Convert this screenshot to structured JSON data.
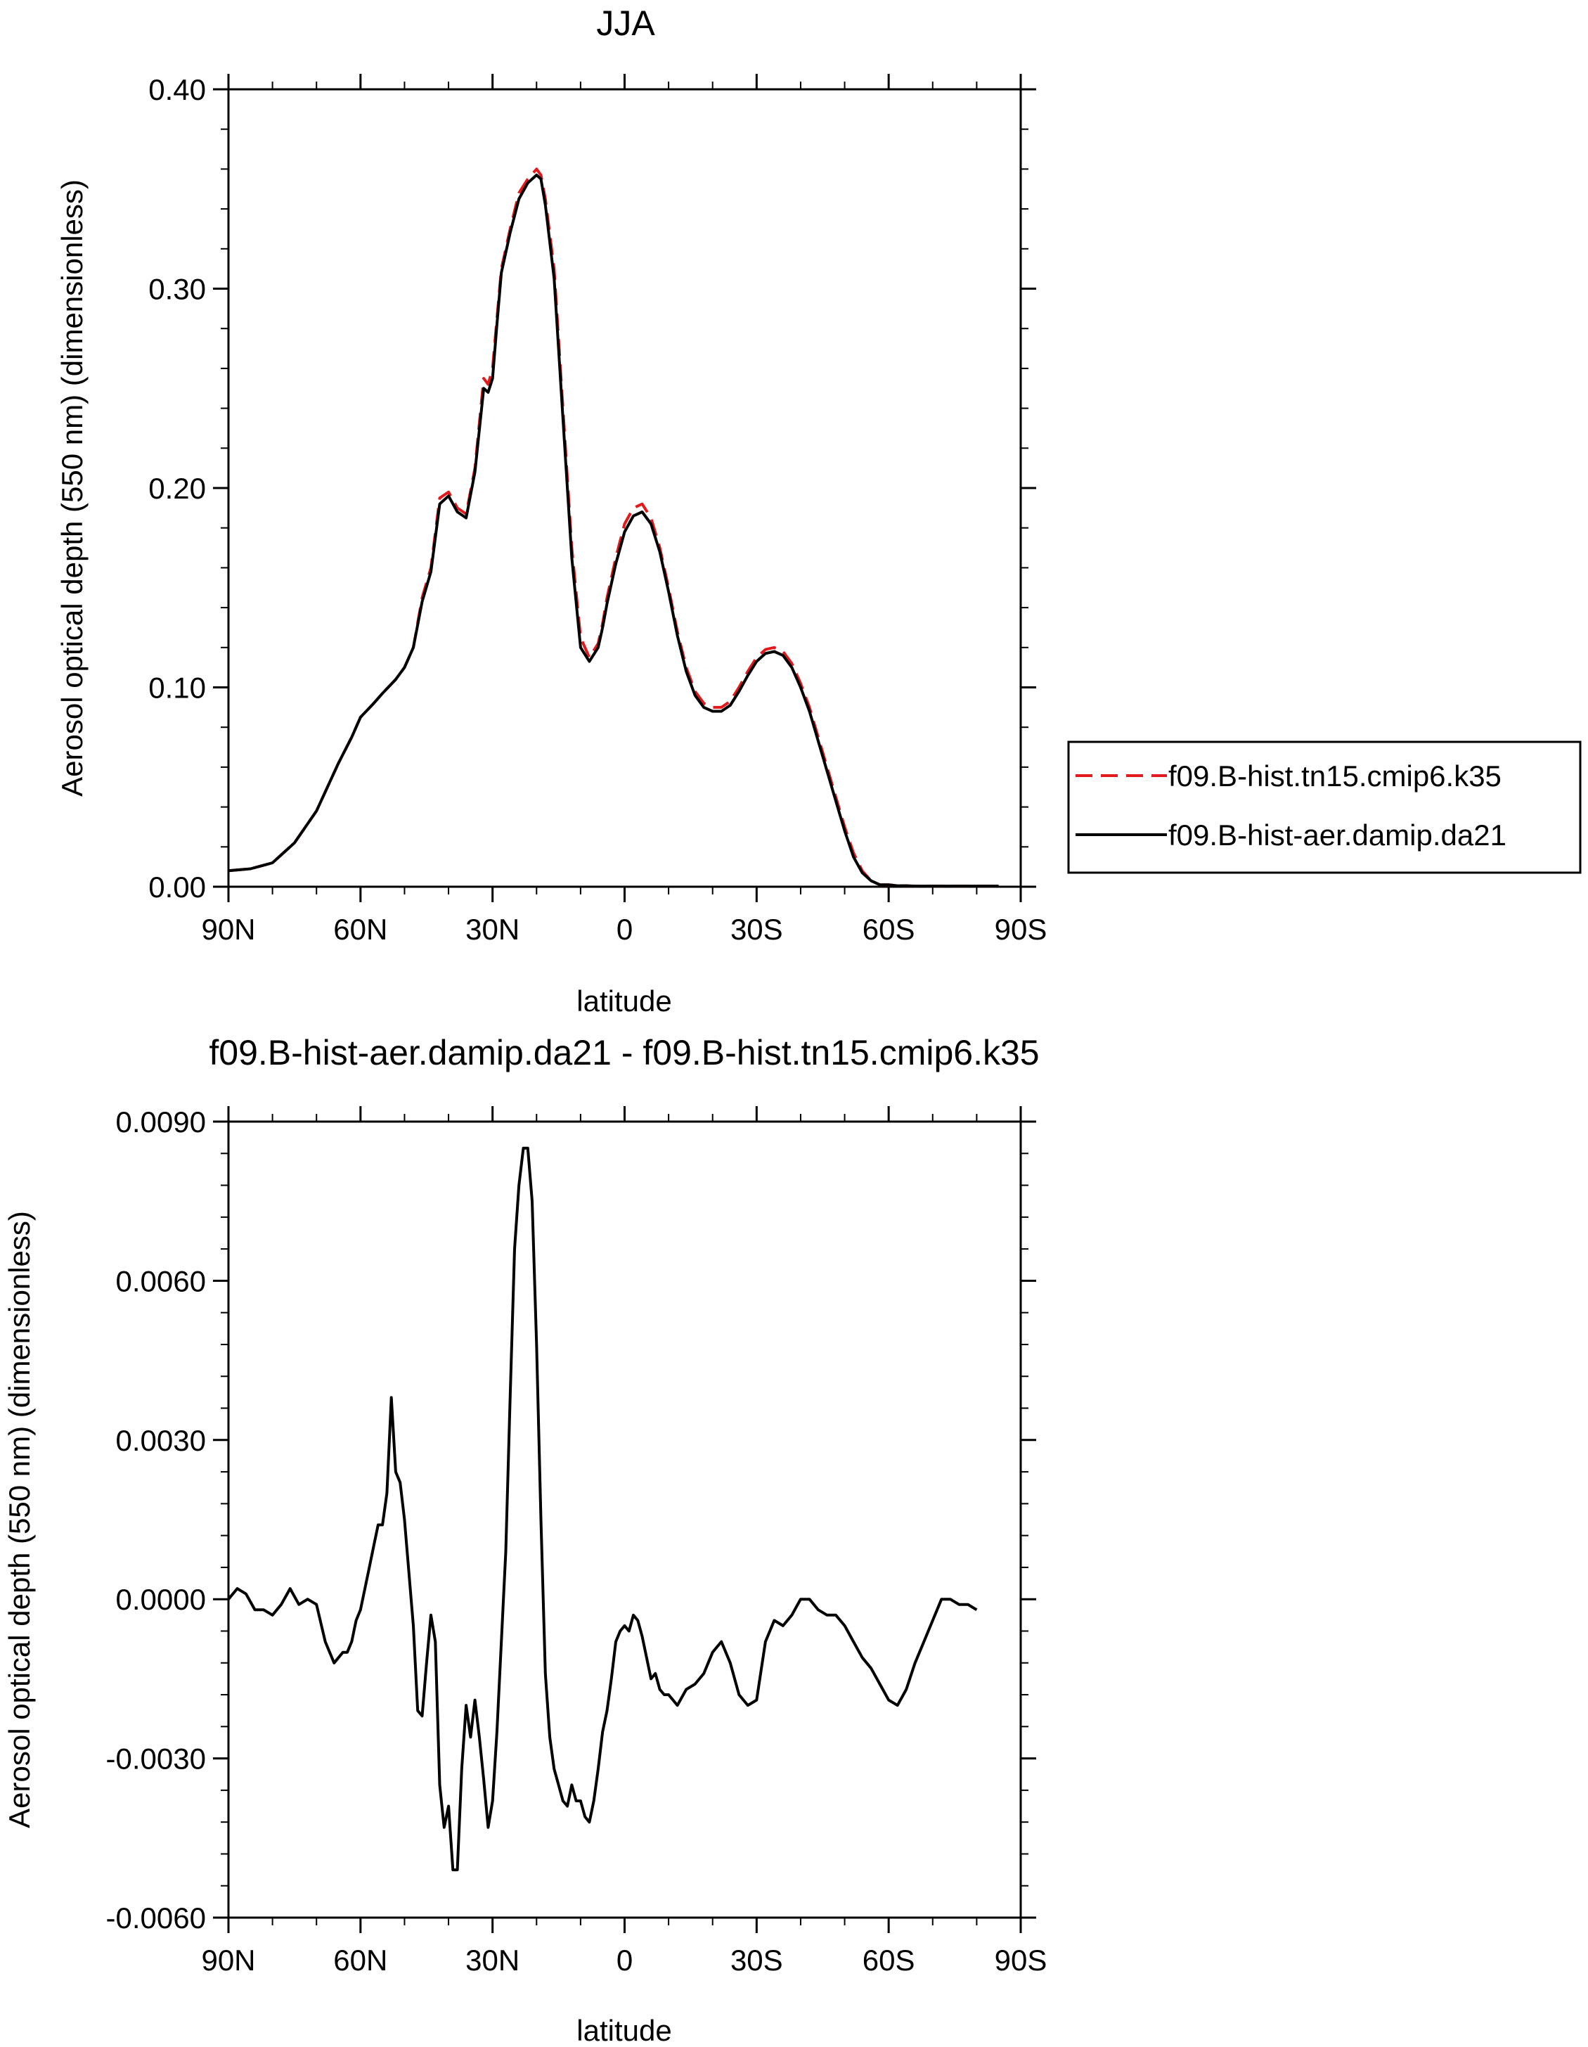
{
  "chart_data": [
    {
      "type": "line",
      "title": "JJA",
      "xlabel": "latitude",
      "ylabel": "Aerosol optical depth (550 nm) (dimensionless)",
      "xlim": [
        90,
        -90
      ],
      "ylim": [
        0,
        0.4
      ],
      "x_ticks": [
        {
          "value": 90,
          "label": "90N"
        },
        {
          "value": 60,
          "label": "60N"
        },
        {
          "value": 30,
          "label": "30N"
        },
        {
          "value": 0,
          "label": "0"
        },
        {
          "value": -30,
          "label": "30S"
        },
        {
          "value": -60,
          "label": "60S"
        },
        {
          "value": -90,
          "label": "90S"
        }
      ],
      "y_ticks": [
        {
          "value": 0.0,
          "label": "0.00"
        },
        {
          "value": 0.1,
          "label": "0.10"
        },
        {
          "value": 0.2,
          "label": "0.20"
        },
        {
          "value": 0.3,
          "label": "0.30"
        },
        {
          "value": 0.4,
          "label": "0.40"
        }
      ],
      "legend_position": "right",
      "series": [
        {
          "name": "f09.B-hist.tn15.cmip6.k35",
          "color": "#e31a1c",
          "dash": "dashed",
          "x": [
            90,
            85,
            80,
            75,
            70,
            65,
            62,
            60,
            57,
            55,
            52,
            50,
            48,
            46,
            44,
            42,
            40,
            38,
            36,
            34,
            32,
            31,
            30,
            29,
            28,
            26,
            24,
            22,
            20,
            19,
            18,
            16,
            14,
            12,
            10,
            8,
            6,
            5,
            4,
            2,
            0,
            -2,
            -4,
            -6,
            -8,
            -10,
            -12,
            -14,
            -16,
            -18,
            -20,
            -22,
            -24,
            -26,
            -28,
            -30,
            -32,
            -34,
            -36,
            -38,
            -40,
            -42,
            -44,
            -46,
            -48,
            -50,
            -52,
            -54,
            -56,
            -58,
            -60,
            -62,
            -64,
            -66,
            -68,
            -70,
            -72,
            -75,
            -80,
            -85
          ],
          "y": [
            0.008,
            0.009,
            0.012,
            0.022,
            0.038,
            0.062,
            0.075,
            0.085,
            0.092,
            0.097,
            0.104,
            0.11,
            0.12,
            0.145,
            0.16,
            0.195,
            0.198,
            0.19,
            0.187,
            0.21,
            0.255,
            0.252,
            0.26,
            0.285,
            0.31,
            0.33,
            0.348,
            0.355,
            0.36,
            0.357,
            0.345,
            0.31,
            0.24,
            0.17,
            0.125,
            0.115,
            0.122,
            0.132,
            0.145,
            0.165,
            0.182,
            0.19,
            0.192,
            0.185,
            0.17,
            0.15,
            0.128,
            0.11,
            0.098,
            0.092,
            0.09,
            0.09,
            0.093,
            0.1,
            0.108,
            0.115,
            0.119,
            0.12,
            0.118,
            0.112,
            0.102,
            0.09,
            0.075,
            0.06,
            0.045,
            0.03,
            0.017,
            0.008,
            0.003,
            0.001,
            0.001,
            0.0005,
            0.0005,
            0.0003,
            0.0003,
            0.0003,
            0.0003,
            0.0003,
            0.0003,
            0.0003
          ]
        },
        {
          "name": "f09.B-hist-aer.damip.da21",
          "color": "#000000",
          "dash": "solid",
          "x": [
            90,
            85,
            80,
            75,
            70,
            65,
            62,
            60,
            57,
            55,
            52,
            50,
            48,
            46,
            44,
            42,
            40,
            38,
            36,
            34,
            32,
            31,
            30,
            29,
            28,
            26,
            24,
            22,
            20,
            19,
            18,
            16,
            14,
            12,
            10,
            8,
            6,
            5,
            4,
            2,
            0,
            -2,
            -4,
            -6,
            -8,
            -10,
            -12,
            -14,
            -16,
            -18,
            -20,
            -22,
            -24,
            -26,
            -28,
            -30,
            -32,
            -34,
            -36,
            -38,
            -40,
            -42,
            -44,
            -46,
            -48,
            -50,
            -52,
            -54,
            -56,
            -58,
            -60,
            -62,
            -64,
            -66,
            -68,
            -70,
            -72,
            -75,
            -80,
            -85
          ],
          "y": [
            0.008,
            0.009,
            0.012,
            0.022,
            0.038,
            0.062,
            0.075,
            0.085,
            0.092,
            0.097,
            0.104,
            0.11,
            0.12,
            0.143,
            0.158,
            0.192,
            0.196,
            0.188,
            0.185,
            0.208,
            0.25,
            0.248,
            0.255,
            0.282,
            0.308,
            0.328,
            0.345,
            0.353,
            0.357,
            0.355,
            0.342,
            0.305,
            0.235,
            0.165,
            0.12,
            0.113,
            0.12,
            0.13,
            0.142,
            0.162,
            0.178,
            0.186,
            0.188,
            0.182,
            0.168,
            0.148,
            0.126,
            0.108,
            0.096,
            0.09,
            0.088,
            0.088,
            0.091,
            0.098,
            0.106,
            0.113,
            0.117,
            0.118,
            0.116,
            0.11,
            0.1,
            0.088,
            0.073,
            0.058,
            0.043,
            0.028,
            0.015,
            0.007,
            0.003,
            0.001,
            0.001,
            0.0005,
            0.0005,
            0.0003,
            0.0003,
            0.0003,
            0.0003,
            0.0003,
            0.0003,
            0.0003
          ]
        }
      ]
    },
    {
      "type": "line",
      "title": "f09.B-hist-aer.damip.da21 - f09.B-hist.tn15.cmip6.k35",
      "xlabel": "latitude",
      "ylabel": "Aerosol optical depth (550 nm) (dimensionless)",
      "xlim": [
        90,
        -90
      ],
      "ylim": [
        -0.006,
        0.009
      ],
      "x_ticks": [
        {
          "value": 90,
          "label": "90N"
        },
        {
          "value": 60,
          "label": "60N"
        },
        {
          "value": 30,
          "label": "30N"
        },
        {
          "value": 0,
          "label": "0"
        },
        {
          "value": -30,
          "label": "30S"
        },
        {
          "value": -60,
          "label": "60S"
        },
        {
          "value": -90,
          "label": "90S"
        }
      ],
      "y_ticks": [
        {
          "value": -0.006,
          "label": "-0.0060"
        },
        {
          "value": -0.003,
          "label": "-0.0030"
        },
        {
          "value": 0.0,
          "label": "0.0000"
        },
        {
          "value": 0.003,
          "label": "0.0030"
        },
        {
          "value": 0.006,
          "label": "0.0060"
        },
        {
          "value": 0.009,
          "label": "0.0090"
        }
      ],
      "series": [
        {
          "color": "#000000",
          "dash": "solid",
          "x": [
            90,
            88,
            86,
            84,
            82,
            80,
            78,
            76,
            74,
            72,
            70,
            68,
            66,
            64,
            63,
            62,
            61,
            60,
            59,
            58,
            57,
            56,
            55,
            54,
            53,
            52,
            51,
            50,
            49,
            48,
            47,
            46,
            45,
            44,
            43,
            42,
            41,
            40,
            39,
            38,
            37,
            36,
            35,
            34,
            33,
            32,
            31,
            30,
            29,
            28,
            27,
            26,
            25,
            24,
            23,
            22,
            21,
            20,
            19,
            18,
            17,
            16,
            15,
            14,
            13,
            12,
            11,
            10,
            9,
            8,
            7,
            6,
            5,
            4,
            3,
            2,
            1,
            0,
            -1,
            -2,
            -3,
            -4,
            -5,
            -6,
            -7,
            -8,
            -9,
            -10,
            -12,
            -14,
            -16,
            -18,
            -20,
            -22,
            -24,
            -26,
            -28,
            -30,
            -32,
            -34,
            -36,
            -38,
            -40,
            -42,
            -44,
            -46,
            -48,
            -50,
            -52,
            -54,
            -56,
            -58,
            -60,
            -62,
            -64,
            -66,
            -68,
            -70,
            -72,
            -74,
            -76,
            -78,
            -80
          ],
          "y": [
            0.0,
            0.0002,
            0.0001,
            -0.0002,
            -0.0002,
            -0.0003,
            -0.0001,
            0.0002,
            -0.0001,
            0.0,
            -0.0001,
            -0.0008,
            -0.0012,
            -0.001,
            -0.001,
            -0.0008,
            -0.0004,
            -0.0002,
            0.0002,
            0.0006,
            0.001,
            0.0014,
            0.0014,
            0.002,
            0.0038,
            0.0024,
            0.0022,
            0.0015,
            0.0005,
            -0.0005,
            -0.0021,
            -0.0022,
            -0.0012,
            -0.0003,
            -0.0008,
            -0.0035,
            -0.0043,
            -0.0039,
            -0.0051,
            -0.0051,
            -0.0032,
            -0.002,
            -0.0026,
            -0.0019,
            -0.0026,
            -0.0034,
            -0.0043,
            -0.0038,
            -0.0025,
            -0.0008,
            0.0009,
            0.0038,
            0.0066,
            0.0078,
            0.0085,
            0.0085,
            0.0075,
            0.0048,
            0.0015,
            -0.0014,
            -0.0026,
            -0.0032,
            -0.0035,
            -0.0038,
            -0.0039,
            -0.0035,
            -0.0038,
            -0.0038,
            -0.0041,
            -0.0042,
            -0.0038,
            -0.0032,
            -0.0025,
            -0.0021,
            -0.0015,
            -0.0008,
            -0.0006,
            -0.0005,
            -0.0006,
            -0.0003,
            -0.0004,
            -0.0007,
            -0.0011,
            -0.0015,
            -0.0014,
            -0.0017,
            -0.0018,
            -0.0018,
            -0.002,
            -0.0017,
            -0.0016,
            -0.0014,
            -0.001,
            -0.0008,
            -0.0012,
            -0.0018,
            -0.002,
            -0.0019,
            -0.0008,
            -0.0004,
            -0.0005,
            -0.0003,
            0.0,
            0.0,
            -0.0002,
            -0.0003,
            -0.0003,
            -0.0005,
            -0.0008,
            -0.0011,
            -0.0013,
            -0.0016,
            -0.0019,
            -0.002,
            -0.0017,
            -0.0012,
            -0.0008,
            -0.0004,
            0.0,
            0.0,
            -0.0001,
            -0.0001,
            -0.0002
          ]
        }
      ]
    }
  ]
}
